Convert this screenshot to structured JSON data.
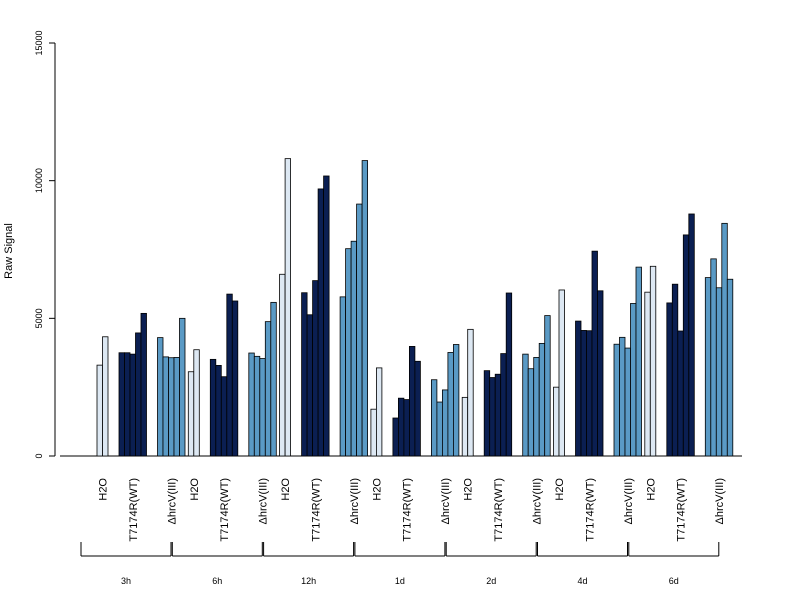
{
  "chart_data": {
    "type": "bar",
    "ylabel": "Raw Signal",
    "ylim": [
      0,
      15000
    ],
    "y_ticks": [
      0,
      5000,
      10000,
      15000
    ],
    "grid": false,
    "legend": "none",
    "colors": {
      "H2O": "#dde8f3",
      "T7174R(WT)": "#0b1f52",
      "ΔhrcV(III)": "#5a9ac5"
    },
    "time_points": [
      "3h",
      "6h",
      "12h",
      "1d",
      "2d",
      "4d",
      "6d"
    ],
    "treatments": [
      "H2O",
      "T7174R(WT)",
      "ΔhrcV(III)"
    ],
    "values": [
      {
        "H2O": [
          3300,
          4330
        ],
        "T7174R(WT)": [
          3750,
          3750,
          3700,
          4470,
          5180
        ],
        "ΔhrcV(III)": [
          4300,
          3600,
          3570,
          3580,
          5000
        ]
      },
      {
        "H2O": [
          3060,
          3860
        ],
        "T7174R(WT)": [
          3510,
          3290,
          2880,
          5880,
          5630
        ],
        "ΔhrcV(III)": [
          3740,
          3620,
          3540,
          4880,
          5580
        ]
      },
      {
        "H2O": [
          6600,
          10800
        ],
        "T7174R(WT)": [
          5930,
          5130,
          6370,
          9700,
          10170
        ],
        "ΔhrcV(III)": [
          5780,
          7530,
          7800,
          9150,
          10730
        ]
      },
      {
        "H2O": [
          1700,
          3200
        ],
        "T7174R(WT)": [
          1380,
          2100,
          2050,
          3980,
          3440
        ],
        "ΔhrcV(III)": [
          2770,
          1960,
          2400,
          3760,
          4050
        ]
      },
      {
        "H2O": [
          2130,
          4600
        ],
        "T7174R(WT)": [
          3100,
          2850,
          2970,
          3720,
          5920
        ],
        "ΔhrcV(III)": [
          3700,
          3170,
          3580,
          4090,
          5100
        ]
      },
      {
        "H2O": [
          2500,
          6030
        ],
        "T7174R(WT)": [
          4900,
          4560,
          4550,
          7440,
          6000
        ],
        "ΔhrcV(III)": [
          4060,
          4310,
          3920,
          5540,
          6860
        ]
      },
      {
        "H2O": [
          5950,
          6890
        ],
        "T7174R(WT)": [
          5560,
          6240,
          4540,
          8030,
          8790
        ],
        "ΔhrcV(III)": [
          6480,
          7160,
          6110,
          8450,
          6420
        ]
      }
    ]
  }
}
